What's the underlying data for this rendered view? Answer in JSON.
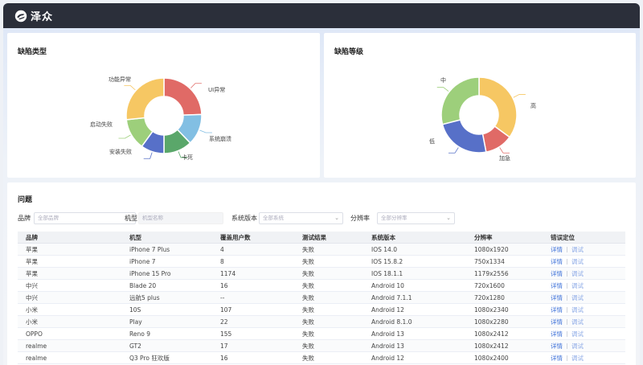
{
  "app": {
    "title": "泽众"
  },
  "defect_type": {
    "title": "缺陷类型",
    "chart_data": {
      "type": "pie",
      "categories": [
        "UI异常",
        "系统崩溃",
        "卡死",
        "安装失败",
        "启动失败",
        "功能异常"
      ],
      "values": [
        22,
        12,
        11,
        9,
        12,
        24
      ],
      "colors": [
        "#e06a66",
        "#82bfe3",
        "#5aa76a",
        "#5770c8",
        "#9dcf7b",
        "#f6c763"
      ]
    }
  },
  "defect_level": {
    "title": "缺陷等级",
    "chart_data": {
      "type": "pie",
      "categories": [
        "高",
        "加急",
        "低",
        "中"
      ],
      "values": [
        35,
        12,
        24,
        29
      ],
      "colors": [
        "#f6c763",
        "#e06a66",
        "#5770c8",
        "#9dcf7b"
      ]
    }
  },
  "issues": {
    "title": "问题",
    "filters": {
      "brand_label": "品牌",
      "brand_placeholder": "全部品牌",
      "model_label": "机型",
      "model_placeholder": "机型名称",
      "os_label": "系统版本",
      "os_placeholder": "全部系统",
      "res_label": "分辨率",
      "res_placeholder": "全部分辨率"
    },
    "columns": [
      "品牌",
      "机型",
      "覆盖用户数",
      "测试结果",
      "系统版本",
      "分辨率",
      "错误定位"
    ],
    "detail_label": "详情",
    "debug_label": "调试",
    "rows": [
      [
        "苹果",
        "iPhone 7 Plus",
        "4",
        "失败",
        "IOS 14.0",
        "1080x1920"
      ],
      [
        "苹果",
        "iPhone 7",
        "8",
        "失败",
        "IOS 15.8.2",
        "750x1334"
      ],
      [
        "苹果",
        "iPhone 15 Pro",
        "1174",
        "失败",
        "IOS 18.1.1",
        "1179x2556"
      ],
      [
        "中兴",
        "Blade 20",
        "16",
        "失败",
        "Android 10",
        "720x1600"
      ],
      [
        "中兴",
        "远航5 plus",
        "--",
        "失败",
        "Android 7.1.1",
        "720x1280"
      ],
      [
        "小米",
        "10S",
        "107",
        "失败",
        "Android 12",
        "1080x2340"
      ],
      [
        "小米",
        "Play",
        "22",
        "失败",
        "Android 8.1.0",
        "1080x2280"
      ],
      [
        "OPPO",
        "Reno 9",
        "155",
        "失败",
        "Android 13",
        "1080x2412"
      ],
      [
        "realme",
        "GT2",
        "17",
        "失败",
        "Android 13",
        "1080x2412"
      ],
      [
        "realme",
        "Q3 Pro 狂欢版",
        "16",
        "失败",
        "Android 12",
        "1080x2400"
      ]
    ]
  }
}
